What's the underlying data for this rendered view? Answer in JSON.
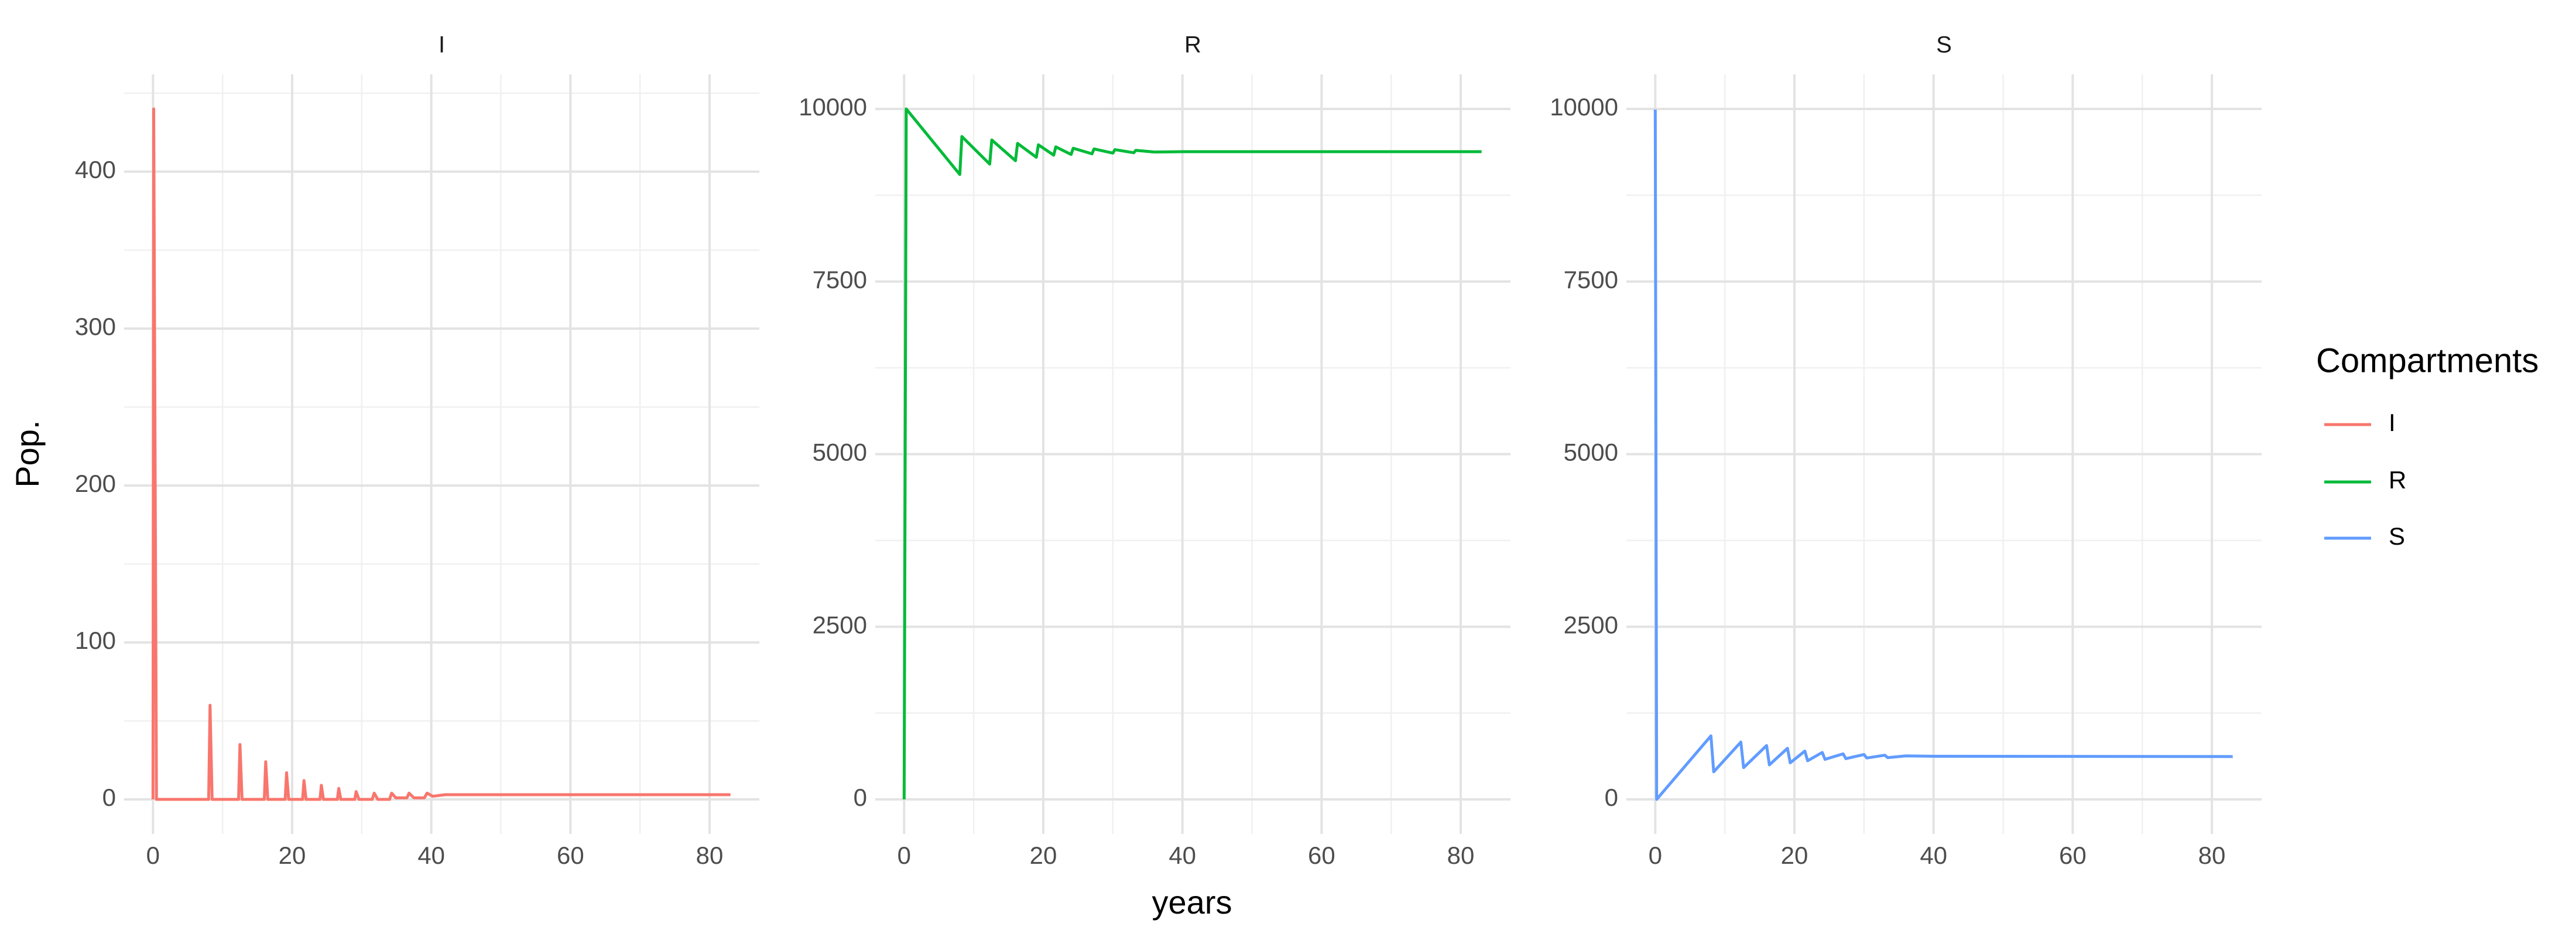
{
  "chart_data": [
    {
      "type": "line",
      "title": "I",
      "x": [
        0,
        0.1,
        0.5,
        8,
        8.2,
        8.5,
        12.3,
        12.5,
        12.8,
        16,
        16.2,
        16.5,
        19,
        19.2,
        19.5,
        21.5,
        21.7,
        22,
        24,
        24.2,
        24.5,
        26.5,
        26.7,
        27,
        29,
        29.2,
        29.6,
        31.5,
        31.8,
        32.3,
        34,
        34.3,
        34.9,
        36.5,
        36.8,
        37.5,
        39,
        39.4,
        40.2,
        42,
        45,
        50,
        83
      ],
      "series": [
        {
          "name": "I",
          "color": "#f8766d",
          "values": [
            0,
            440,
            0,
            0,
            60,
            0,
            0,
            35,
            0,
            0,
            24,
            0,
            0,
            17,
            0,
            0,
            12,
            0,
            0,
            9,
            0,
            0,
            7,
            0,
            0,
            5,
            0,
            0,
            4,
            0,
            0,
            4,
            1,
            1,
            4,
            1,
            1,
            4,
            2,
            3,
            3,
            3,
            3
          ]
        }
      ],
      "xlim": [
        -4.15,
        87.15
      ],
      "xticks": [
        0,
        20,
        40,
        60,
        80
      ],
      "minor_xticks": [
        10,
        30,
        50,
        70
      ],
      "ylim": [
        -22,
        462
      ],
      "yticks": [
        0,
        100,
        200,
        300,
        400
      ],
      "minor_yticks": [
        50,
        150,
        250,
        350,
        450
      ],
      "grid": true
    },
    {
      "type": "line",
      "title": "R",
      "x": [
        0,
        0.3,
        8,
        8.3,
        12.3,
        12.6,
        16,
        16.3,
        19,
        19.3,
        21.5,
        21.8,
        24,
        24.3,
        27,
        27.3,
        30,
        30.3,
        33,
        33.3,
        36,
        40,
        83
      ],
      "series": [
        {
          "name": "R",
          "color": "#00ba38",
          "values": [
            0,
            10000,
            9050,
            9600,
            9200,
            9550,
            9250,
            9500,
            9300,
            9480,
            9330,
            9450,
            9340,
            9430,
            9350,
            9420,
            9360,
            9410,
            9365,
            9400,
            9375,
            9380,
            9380
          ]
        }
      ],
      "xlim": [
        -4.15,
        87.15
      ],
      "xticks": [
        0,
        20,
        40,
        60,
        80
      ],
      "minor_xticks": [
        10,
        30,
        50,
        70
      ],
      "ylim": [
        -500,
        10500
      ],
      "yticks": [
        0,
        2500,
        5000,
        7500,
        10000
      ],
      "minor_yticks": [
        1250,
        3750,
        6250,
        8750
      ],
      "grid": true
    },
    {
      "type": "line",
      "title": "S",
      "x": [
        0,
        0.2,
        8,
        8.4,
        12.3,
        12.7,
        16,
        16.4,
        19,
        19.4,
        21.5,
        21.9,
        24,
        24.4,
        27,
        27.4,
        30,
        30.4,
        33,
        33.4,
        36,
        40,
        83
      ],
      "series": [
        {
          "name": "S",
          "color": "#619cff",
          "values": [
            9990,
            0,
            920,
            400,
            830,
            460,
            780,
            500,
            740,
            530,
            700,
            560,
            680,
            580,
            660,
            590,
            650,
            600,
            640,
            605,
            630,
            625,
            620
          ]
        }
      ],
      "xlim": [
        -4.15,
        87.15
      ],
      "xticks": [
        0,
        20,
        40,
        60,
        80
      ],
      "minor_xticks": [
        10,
        30,
        50,
        70
      ],
      "ylim": [
        -500,
        10500
      ],
      "yticks": [
        0,
        2500,
        5000,
        7500,
        10000
      ],
      "minor_yticks": [
        1250,
        3750,
        6250,
        8750
      ],
      "grid": true
    }
  ],
  "x_label": "years",
  "y_label": "Pop.",
  "legend_title": "Compartments"
}
